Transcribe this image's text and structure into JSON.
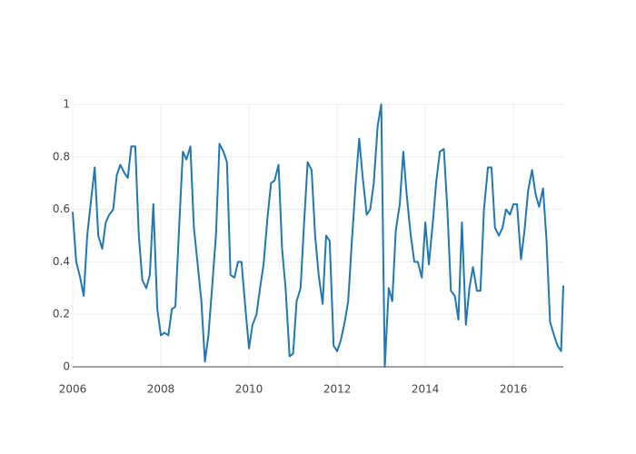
{
  "chart_data": {
    "type": "line",
    "color": "#1f77b4",
    "grid": true,
    "xlim": [
      2006,
      2017.13
    ],
    "xticks": [
      2006,
      2008,
      2010,
      2012,
      2014,
      2016
    ],
    "ylim": [
      0,
      1
    ],
    "yticks": [
      0,
      0.2,
      0.4,
      0.6,
      0.8,
      1
    ],
    "x": [
      2006,
      2006.08,
      2006.17,
      2006.25,
      2006.33,
      2006.42,
      2006.5,
      2006.58,
      2006.67,
      2006.75,
      2006.83,
      2006.92,
      2007,
      2007.08,
      2007.17,
      2007.25,
      2007.33,
      2007.42,
      2007.5,
      2007.58,
      2007.67,
      2007.75,
      2007.83,
      2007.92,
      2008,
      2008.08,
      2008.17,
      2008.25,
      2008.33,
      2008.42,
      2008.5,
      2008.58,
      2008.67,
      2008.75,
      2008.83,
      2008.92,
      2009,
      2009.08,
      2009.17,
      2009.25,
      2009.33,
      2009.42,
      2009.5,
      2009.58,
      2009.67,
      2009.75,
      2009.83,
      2009.92,
      2010,
      2010.08,
      2010.17,
      2010.25,
      2010.33,
      2010.42,
      2010.5,
      2010.58,
      2010.67,
      2010.75,
      2010.83,
      2010.92,
      2011,
      2011.08,
      2011.17,
      2011.25,
      2011.33,
      2011.42,
      2011.5,
      2011.58,
      2011.67,
      2011.75,
      2011.83,
      2011.92,
      2012,
      2012.08,
      2012.17,
      2012.25,
      2012.33,
      2012.42,
      2012.5,
      2012.58,
      2012.67,
      2012.75,
      2012.83,
      2012.92,
      2013,
      2013.08,
      2013.17,
      2013.25,
      2013.33,
      2013.42,
      2013.5,
      2013.58,
      2013.67,
      2013.75,
      2013.83,
      2013.92,
      2014,
      2014.08,
      2014.17,
      2014.25,
      2014.33,
      2014.42,
      2014.5,
      2014.58,
      2014.67,
      2014.75,
      2014.83,
      2014.92,
      2015,
      2015.08,
      2015.17,
      2015.25,
      2015.33,
      2015.42,
      2015.5,
      2015.58,
      2015.67,
      2015.75,
      2015.83,
      2015.92,
      2016,
      2016.08,
      2016.17,
      2016.25,
      2016.33,
      2016.42,
      2016.5,
      2016.58,
      2016.67,
      2016.75,
      2016.83,
      2016.92,
      2017,
      2017.08,
      2017.13
    ],
    "values": [
      0.59,
      0.4,
      0.34,
      0.27,
      0.5,
      0.64,
      0.76,
      0.5,
      0.45,
      0.55,
      0.58,
      0.6,
      0.73,
      0.77,
      0.74,
      0.72,
      0.84,
      0.84,
      0.5,
      0.33,
      0.3,
      0.35,
      0.62,
      0.22,
      0.12,
      0.13,
      0.12,
      0.22,
      0.23,
      0.55,
      0.82,
      0.79,
      0.84,
      0.53,
      0.4,
      0.25,
      0.02,
      0.12,
      0.32,
      0.5,
      0.85,
      0.82,
      0.78,
      0.35,
      0.34,
      0.4,
      0.4,
      0.22,
      0.07,
      0.16,
      0.2,
      0.3,
      0.39,
      0.57,
      0.7,
      0.71,
      0.77,
      0.45,
      0.3,
      0.04,
      0.05,
      0.25,
      0.3,
      0.55,
      0.78,
      0.75,
      0.5,
      0.35,
      0.24,
      0.5,
      0.48,
      0.08,
      0.06,
      0.1,
      0.17,
      0.25,
      0.47,
      0.7,
      0.87,
      0.72,
      0.58,
      0.6,
      0.7,
      0.92,
      1.0,
      0.0,
      0.3,
      0.25,
      0.52,
      0.62,
      0.82,
      0.65,
      0.5,
      0.4,
      0.4,
      0.34,
      0.55,
      0.39,
      0.55,
      0.71,
      0.82,
      0.83,
      0.6,
      0.29,
      0.27,
      0.18,
      0.55,
      0.16,
      0.3,
      0.38,
      0.29,
      0.29,
      0.6,
      0.76,
      0.76,
      0.53,
      0.5,
      0.53,
      0.6,
      0.58,
      0.62,
      0.62,
      0.41,
      0.52,
      0.67,
      0.75,
      0.66,
      0.61,
      0.68,
      0.48,
      0.17,
      0.12,
      0.08,
      0.06,
      0.31
    ]
  }
}
